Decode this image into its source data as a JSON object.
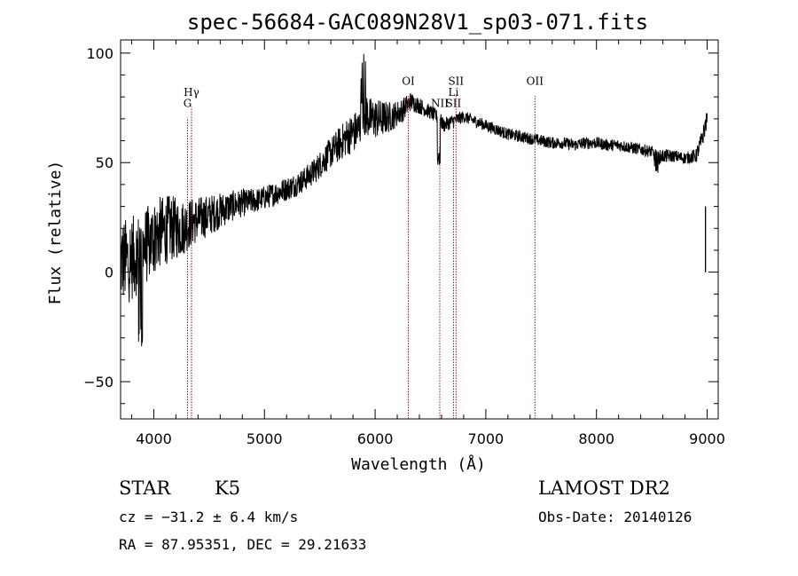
{
  "chart_data": {
    "type": "line",
    "title": "spec-56684-GAC089N28V1_sp03-071.fits",
    "xlabel": "Wavelength (Å)",
    "ylabel": "Flux (relative)",
    "xlim": [
      3700,
      9100
    ],
    "ylim": [
      -67,
      106
    ],
    "x_ticks": [
      4000,
      5000,
      6000,
      7000,
      8000,
      9000
    ],
    "y_ticks": [
      -50,
      0,
      50,
      100
    ],
    "grid": false,
    "line_color": "#000000",
    "marker_color": "#8b1a1a",
    "spectrum_envelope": {
      "x": [
        3700,
        3760,
        3850,
        3950,
        4050,
        4150,
        4250,
        4350,
        4450,
        4550,
        4650,
        4750,
        4850,
        4950,
        5050,
        5150,
        5250,
        5350,
        5450,
        5550,
        5650,
        5750,
        5850,
        5900,
        5950,
        6050,
        6150,
        6250,
        6320,
        6400,
        6500,
        6580,
        6620,
        6700,
        6800,
        6900,
        7000,
        7100,
        7200,
        7300,
        7400,
        7500,
        7600,
        7700,
        7800,
        7900,
        8000,
        8100,
        8200,
        8300,
        8400,
        8500,
        8550,
        8600,
        8700,
        8800,
        8900,
        8950,
        9000
      ],
      "y": [
        5,
        5,
        8,
        13,
        18,
        20,
        20,
        23,
        25,
        27,
        29,
        31,
        32,
        33,
        35,
        37,
        39,
        42,
        46,
        52,
        57,
        62,
        65,
        74,
        70,
        70,
        71,
        74,
        78,
        76,
        73,
        70,
        67,
        69,
        71,
        69,
        67,
        65,
        63,
        62,
        61,
        60,
        59,
        59,
        58,
        59,
        59,
        58,
        58,
        57,
        56,
        55,
        52,
        53,
        53,
        52,
        53,
        60,
        70
      ],
      "scatter": [
        18,
        18,
        17,
        16,
        15,
        14,
        12,
        10,
        9,
        8,
        7,
        6,
        5.5,
        5,
        5,
        5,
        5,
        5,
        5.5,
        6,
        7,
        8,
        9,
        10,
        9,
        8,
        6,
        5,
        4,
        3.5,
        3,
        3,
        3,
        3,
        2.5,
        2.5,
        2.5,
        2.5,
        2.5,
        2.5,
        2.5,
        2.5,
        2.5,
        2.5,
        2.5,
        2.5,
        2.5,
        2.5,
        2.5,
        2.5,
        2.5,
        2.5,
        3,
        3,
        2.5,
        2.5,
        3,
        4,
        4
      ]
    },
    "lines": [
      {
        "wavelength": 4305,
        "labels": [
          "G"
        ],
        "label_y": [
          75.5
        ]
      },
      {
        "wavelength": 4341,
        "labels": [
          "Hγ"
        ],
        "label_y": [
          80.5
        ]
      },
      {
        "wavelength": 6300,
        "labels": [
          "OI"
        ],
        "label_y": [
          85.5
        ]
      },
      {
        "wavelength": 6584,
        "labels": [
          "NII"
        ],
        "label_y": [
          75.5
        ]
      },
      {
        "wavelength": 6708,
        "labels": [
          "Li",
          "SII"
        ],
        "label_y": [
          80.5,
          75.5
        ]
      },
      {
        "wavelength": 6731,
        "labels": [
          "SII"
        ],
        "label_y": [
          85.5
        ]
      },
      {
        "wavelength": 7444,
        "labels": [
          "OII"
        ],
        "label_y": [
          85.5
        ]
      }
    ]
  },
  "info": {
    "object_class": "STAR",
    "subclass": "K5",
    "survey": "LAMOST DR2",
    "cz": "cz = −31.2 ± 6.4 km/s",
    "obs_date": "Obs-Date: 20140126",
    "coords": "RA =  87.95351, DEC =  29.21633"
  }
}
